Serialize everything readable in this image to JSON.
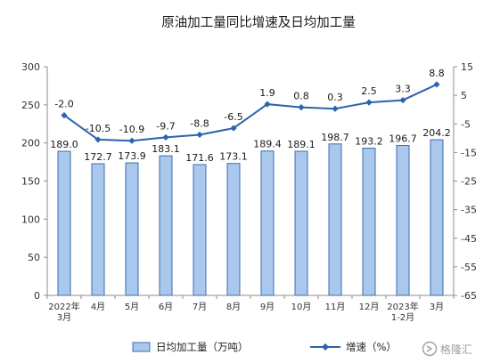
{
  "chart_data": {
    "type": "bar",
    "title": "原油加工量同比增速及日均加工量",
    "categories": [
      [
        "2022年",
        "3月"
      ],
      [
        "4月"
      ],
      [
        "5月"
      ],
      [
        "6月"
      ],
      [
        "7月"
      ],
      [
        "8月"
      ],
      [
        "9月"
      ],
      [
        "10月"
      ],
      [
        "11月"
      ],
      [
        "12月"
      ],
      [
        "2023年",
        "1-2月"
      ],
      [
        "3月"
      ]
    ],
    "series": [
      {
        "name": "日均加工量（万吨）",
        "type": "bar",
        "axis": "left",
        "color": "#a9c8ec",
        "values": [
          189.0,
          172.7,
          173.9,
          183.1,
          171.6,
          173.1,
          189.4,
          189.1,
          198.7,
          193.2,
          196.7,
          204.2
        ]
      },
      {
        "name": "增速（%）",
        "type": "line",
        "axis": "right",
        "color": "#2b63ad",
        "values": [
          -2.0,
          -10.5,
          -10.9,
          -9.7,
          -8.8,
          -6.5,
          1.9,
          0.8,
          0.3,
          2.5,
          3.3,
          8.8
        ]
      }
    ],
    "y_left": {
      "ylim": [
        0,
        300
      ],
      "ticks": [
        0,
        50,
        100,
        150,
        200,
        250,
        300
      ]
    },
    "y_right": {
      "ylim": [
        -65,
        15
      ],
      "ticks": [
        -65,
        -55,
        -45,
        -35,
        -25,
        -15,
        -5,
        5,
        15
      ]
    },
    "grid": false,
    "legend_position": "bottom"
  },
  "watermark": {
    "text": "格隆汇"
  }
}
